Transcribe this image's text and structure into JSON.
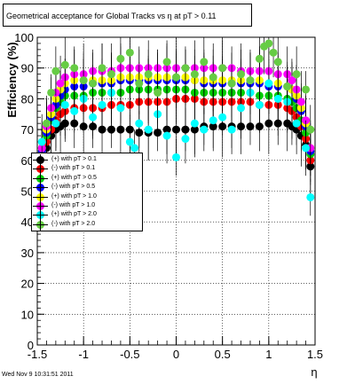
{
  "title": "Geometrical acceptance for Global Tracks vs    η at pT > 0.11",
  "footer": "Wed Nov  9 10:31:51 2011",
  "chart_data": {
    "type": "scatter",
    "title": "Geometrical acceptance for Global Tracks vs    η at pT > 0.11",
    "xlabel": "η",
    "ylabel": "Efficiency (%)",
    "xlim": [
      -1.5,
      1.5
    ],
    "ylim": [
      0,
      100
    ],
    "x_ticks": [
      "-1.5",
      "-1",
      "-0.5",
      "0",
      "0.5",
      "1",
      "1.5"
    ],
    "y_ticks": [
      "0",
      "10",
      "20",
      "30",
      "40",
      "50",
      "60",
      "70",
      "80",
      "90",
      "100"
    ],
    "grid": true,
    "legend_position": "left-middle",
    "series": [
      {
        "name": "(+) with pT > 0.1",
        "color": "#000000",
        "x": [
          -1.45,
          -1.4,
          -1.35,
          -1.3,
          -1.25,
          -1.2,
          -1.1,
          -1.0,
          -0.9,
          -0.8,
          -0.7,
          -0.6,
          -0.5,
          -0.4,
          -0.3,
          -0.2,
          -0.1,
          0.0,
          0.1,
          0.2,
          0.3,
          0.4,
          0.5,
          0.6,
          0.7,
          0.8,
          0.9,
          1.0,
          1.1,
          1.2,
          1.25,
          1.3,
          1.35,
          1.4,
          1.45
        ],
        "values": [
          61,
          64,
          68,
          70,
          71,
          72,
          72,
          71,
          71,
          70,
          70,
          70,
          70,
          69,
          69,
          69,
          70,
          70,
          70,
          70,
          71,
          71,
          71,
          71,
          71,
          71,
          71,
          72,
          72,
          72,
          71,
          70,
          68,
          65,
          58
        ]
      },
      {
        "name": "(-) with pT > 0.1",
        "color": "#ff0000",
        "x": [
          -1.45,
          -1.4,
          -1.35,
          -1.3,
          -1.25,
          -1.2,
          -1.1,
          -1.0,
          -0.9,
          -0.8,
          -0.7,
          -0.6,
          -0.5,
          -0.4,
          -0.3,
          -0.2,
          -0.1,
          0.0,
          0.1,
          0.2,
          0.3,
          0.4,
          0.5,
          0.6,
          0.7,
          0.8,
          0.9,
          1.0,
          1.1,
          1.2,
          1.25,
          1.3,
          1.35,
          1.4,
          1.45
        ],
        "values": [
          62,
          66,
          70,
          73,
          75,
          76,
          77,
          77,
          77,
          77,
          78,
          78,
          78,
          79,
          79,
          79,
          79,
          80,
          80,
          80,
          79,
          79,
          79,
          79,
          79,
          79,
          78,
          78,
          78,
          77,
          76,
          74,
          71,
          67,
          60
        ]
      },
      {
        "name": "(+) with pT > 0.5",
        "color": "#00cc00",
        "x": [
          -1.45,
          -1.4,
          -1.35,
          -1.3,
          -1.25,
          -1.2,
          -1.1,
          -1.0,
          -0.9,
          -0.8,
          -0.7,
          -0.6,
          -0.5,
          -0.4,
          -0.3,
          -0.2,
          -0.1,
          0.0,
          0.1,
          0.2,
          0.3,
          0.4,
          0.5,
          0.6,
          0.7,
          0.8,
          0.9,
          1.0,
          1.1,
          1.2,
          1.25,
          1.3,
          1.35,
          1.4,
          1.45
        ],
        "values": [
          63,
          68,
          73,
          77,
          79,
          81,
          81,
          81,
          82,
          82,
          82,
          82,
          83,
          83,
          83,
          83,
          83,
          83,
          83,
          82,
          82,
          82,
          82,
          82,
          82,
          82,
          81,
          81,
          81,
          80,
          79,
          77,
          73,
          69,
          62
        ]
      },
      {
        "name": "(-) with pT > 0.5",
        "color": "#0000ff",
        "x": [
          -1.45,
          -1.4,
          -1.35,
          -1.3,
          -1.25,
          -1.2,
          -1.1,
          -1.0,
          -0.9,
          -0.8,
          -0.7,
          -0.6,
          -0.5,
          -0.4,
          -0.3,
          -0.2,
          -0.1,
          0.0,
          0.1,
          0.2,
          0.3,
          0.4,
          0.5,
          0.6,
          0.7,
          0.8,
          0.9,
          1.0,
          1.1,
          1.2,
          1.25,
          1.3,
          1.35,
          1.4,
          1.45
        ],
        "values": [
          63,
          69,
          74,
          78,
          81,
          83,
          84,
          84,
          85,
          85,
          85,
          86,
          86,
          86,
          86,
          86,
          86,
          86,
          86,
          86,
          85,
          85,
          85,
          85,
          85,
          85,
          85,
          84,
          84,
          84,
          83,
          80,
          76,
          71,
          63
        ]
      },
      {
        "name": "(+) with pT > 1.0",
        "color": "#ffff00",
        "x": [
          -1.45,
          -1.4,
          -1.35,
          -1.3,
          -1.25,
          -1.2,
          -1.1,
          -1.0,
          -0.9,
          -0.8,
          -0.7,
          -0.6,
          -0.5,
          -0.4,
          -0.3,
          -0.2,
          -0.1,
          0.0,
          0.1,
          0.2,
          0.3,
          0.4,
          0.5,
          0.6,
          0.7,
          0.8,
          0.9,
          1.0,
          1.1,
          1.2,
          1.25,
          1.3,
          1.35,
          1.4,
          1.45
        ],
        "values": [
          64,
          70,
          75,
          80,
          83,
          85,
          86,
          86,
          86,
          86,
          86,
          87,
          87,
          87,
          87,
          87,
          87,
          87,
          87,
          86,
          86,
          86,
          86,
          86,
          86,
          86,
          86,
          85,
          85,
          84,
          83,
          81,
          77,
          72,
          64
        ]
      },
      {
        "name": "(-) with pT > 1.0",
        "color": "#ff00ff",
        "x": [
          -1.45,
          -1.4,
          -1.35,
          -1.3,
          -1.25,
          -1.2,
          -1.1,
          -1.0,
          -0.9,
          -0.8,
          -0.7,
          -0.6,
          -0.5,
          -0.4,
          -0.3,
          -0.2,
          -0.1,
          0.0,
          0.1,
          0.2,
          0.3,
          0.4,
          0.5,
          0.6,
          0.7,
          0.8,
          0.9,
          1.0,
          1.1,
          1.2,
          1.25,
          1.3,
          1.35,
          1.4,
          1.45
        ],
        "values": [
          64,
          71,
          77,
          82,
          85,
          87,
          88,
          88,
          89,
          89,
          89,
          90,
          90,
          90,
          90,
          90,
          90,
          90,
          90,
          90,
          90,
          90,
          90,
          90,
          89,
          89,
          89,
          89,
          88,
          88,
          86,
          83,
          79,
          73,
          64
        ]
      },
      {
        "name": "(+) with pT > 2.0",
        "color": "#00ffff",
        "x": [
          -1.45,
          -1.4,
          -1.3,
          -1.2,
          -1.1,
          -1.0,
          -0.9,
          -0.8,
          -0.7,
          -0.6,
          -0.5,
          -0.45,
          -0.4,
          -0.3,
          -0.2,
          -0.1,
          0.0,
          0.1,
          0.2,
          0.3,
          0.4,
          0.5,
          0.6,
          0.7,
          0.8,
          0.9,
          1.0,
          1.1,
          1.2,
          1.3,
          1.4,
          1.45
        ],
        "values": [
          66,
          56,
          72,
          78,
          76,
          80,
          74,
          78,
          82,
          77,
          66,
          64,
          72,
          70,
          75,
          68,
          61,
          67,
          72,
          70,
          73,
          74,
          70,
          77,
          82,
          78,
          85,
          80,
          79,
          72,
          64,
          48
        ]
      },
      {
        "name": "(-) with pT > 2.0",
        "color": "#66cc44",
        "x": [
          -1.45,
          -1.4,
          -1.35,
          -1.3,
          -1.2,
          -1.1,
          -1.0,
          -0.9,
          -0.8,
          -0.7,
          -0.6,
          -0.5,
          -0.4,
          -0.3,
          -0.2,
          -0.1,
          0.0,
          0.1,
          0.2,
          0.3,
          0.4,
          0.5,
          0.6,
          0.7,
          0.8,
          0.9,
          0.95,
          1.0,
          1.05,
          1.1,
          1.2,
          1.3,
          1.4,
          1.45
        ],
        "values": [
          52,
          72,
          82,
          89,
          91,
          90,
          86,
          85,
          90,
          88,
          93,
          95,
          85,
          88,
          82,
          92,
          87,
          90,
          88,
          92,
          87,
          90,
          85,
          88,
          86,
          93,
          97,
          98,
          95,
          92,
          84,
          88,
          83,
          70
        ]
      }
    ]
  }
}
